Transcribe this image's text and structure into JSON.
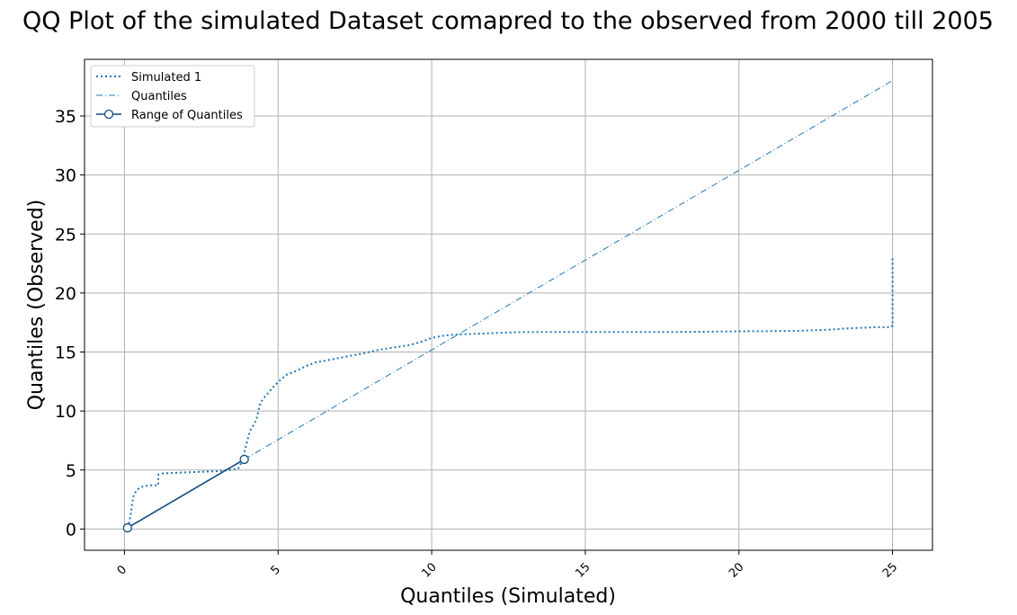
{
  "chart_data": {
    "type": "line",
    "title": "QQ Plot of the simulated Dataset comapred to the observed from 2000 till 2005",
    "xlabel": "Quantiles (Simulated)",
    "ylabel": "Quantiles (Observed)",
    "xlim": [
      -1.3,
      26.3
    ],
    "ylim": [
      -1.8,
      39.8
    ],
    "xticks": [
      0,
      5,
      10,
      15,
      20,
      25
    ],
    "yticks": [
      0,
      5,
      10,
      15,
      20,
      25,
      30,
      35
    ],
    "grid": true,
    "legend_position": "top-left",
    "colors": {
      "simulated": "#1f77b4",
      "quantiles": "#1f77b4",
      "range": "#0f4c81",
      "grid": "#b0b0b0"
    },
    "series": [
      {
        "name": "Simulated 1",
        "style": "dotted",
        "x": [
          0.1,
          0.15,
          0.2,
          0.25,
          0.3,
          0.4,
          0.5,
          0.6,
          0.8,
          1.0,
          1.1,
          1.1,
          1.2,
          1.5,
          2.0,
          2.5,
          3.0,
          3.4,
          3.7,
          3.8,
          3.85,
          3.9,
          4.0,
          4.05,
          4.1,
          4.2,
          4.3,
          4.35,
          4.4,
          4.5,
          4.7,
          4.9,
          5.1,
          5.3,
          5.6,
          5.9,
          6.2,
          6.6,
          7.0,
          7.4,
          7.8,
          8.3,
          8.8,
          9.3,
          9.7,
          10.0,
          10.3,
          10.6,
          11.0,
          11.5,
          12.0,
          12.5,
          13.0,
          14.0,
          15.0,
          16.0,
          17.0,
          18.0,
          19.0,
          20.0,
          21.0,
          22.0,
          22.5,
          23.0,
          23.5,
          24.0,
          24.5,
          24.95,
          24.98,
          25.0,
          25.0
        ],
        "y": [
          0.1,
          0.5,
          1.2,
          2.2,
          2.9,
          3.3,
          3.5,
          3.6,
          3.7,
          3.7,
          3.7,
          4.6,
          4.7,
          4.75,
          4.8,
          4.85,
          4.9,
          5.0,
          5.1,
          5.6,
          5.9,
          6.5,
          7.5,
          8.0,
          8.4,
          8.8,
          9.3,
          9.9,
          10.5,
          11.0,
          11.6,
          12.2,
          12.7,
          13.1,
          13.4,
          13.8,
          14.1,
          14.3,
          14.5,
          14.7,
          14.9,
          15.2,
          15.4,
          15.6,
          15.9,
          16.2,
          16.35,
          16.45,
          16.5,
          16.55,
          16.6,
          16.65,
          16.68,
          16.7,
          16.7,
          16.7,
          16.7,
          16.7,
          16.72,
          16.75,
          16.77,
          16.8,
          16.85,
          16.9,
          17.0,
          17.05,
          17.1,
          17.1,
          17.2,
          17.2,
          23.0
        ]
      },
      {
        "name": "Quantiles",
        "style": "dashdot",
        "x": [
          3.9,
          25.0
        ],
        "y": [
          5.9,
          38.0
        ]
      },
      {
        "name": "Range of Quantiles",
        "style": "solid-markers",
        "x": [
          0.1,
          3.9
        ],
        "y": [
          0.1,
          5.9
        ]
      }
    ]
  }
}
